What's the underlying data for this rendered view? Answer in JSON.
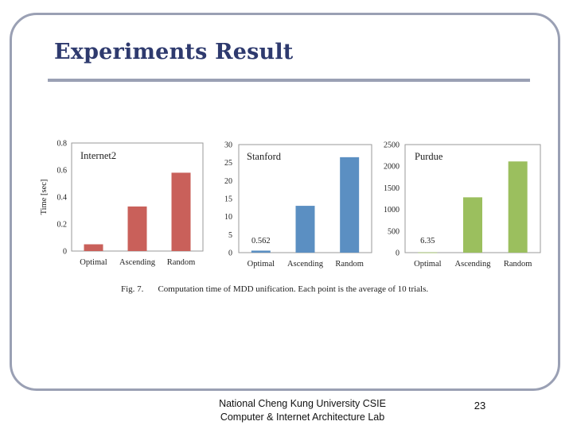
{
  "slide": {
    "title": "Experiments Result",
    "caption_fig": "Fig. 7.",
    "caption_text": "Computation time of MDD unification. Each point is the average of 10 trials.",
    "footer_line1": "National Cheng Kung University CSIE",
    "footer_line2": "Computer & Internet Architecture Lab",
    "page_number": "23"
  },
  "chart_data": [
    {
      "type": "bar",
      "title": "Internet2",
      "categories": [
        "Optimal",
        "Ascending",
        "Random"
      ],
      "values": [
        0.05,
        0.33,
        0.58
      ],
      "ylabel": "Time [sec]",
      "ylim": [
        0,
        0.8
      ],
      "yticks": [
        "0",
        "0.2",
        "0.4",
        "0.6",
        "0.8"
      ],
      "color": "#c9605a",
      "annotation": ""
    },
    {
      "type": "bar",
      "title": "Stanford",
      "categories": [
        "Optimal",
        "Ascending",
        "Random"
      ],
      "values": [
        0.562,
        13,
        26.5
      ],
      "ylabel": "",
      "ylim": [
        0,
        30
      ],
      "yticks": [
        "0",
        "5",
        "10",
        "15",
        "20",
        "25",
        "30"
      ],
      "color": "#5b8fc2",
      "annotation": "0.562"
    },
    {
      "type": "bar",
      "title": "Purdue",
      "categories": [
        "Optimal",
        "Ascending",
        "Random"
      ],
      "values": [
        6.35,
        1280,
        2110
      ],
      "ylabel": "",
      "ylim": [
        0,
        2500
      ],
      "yticks": [
        "0",
        "500",
        "1000",
        "1500",
        "2000",
        "2500"
      ],
      "color": "#9bbf5e",
      "annotation": "6.35"
    }
  ]
}
